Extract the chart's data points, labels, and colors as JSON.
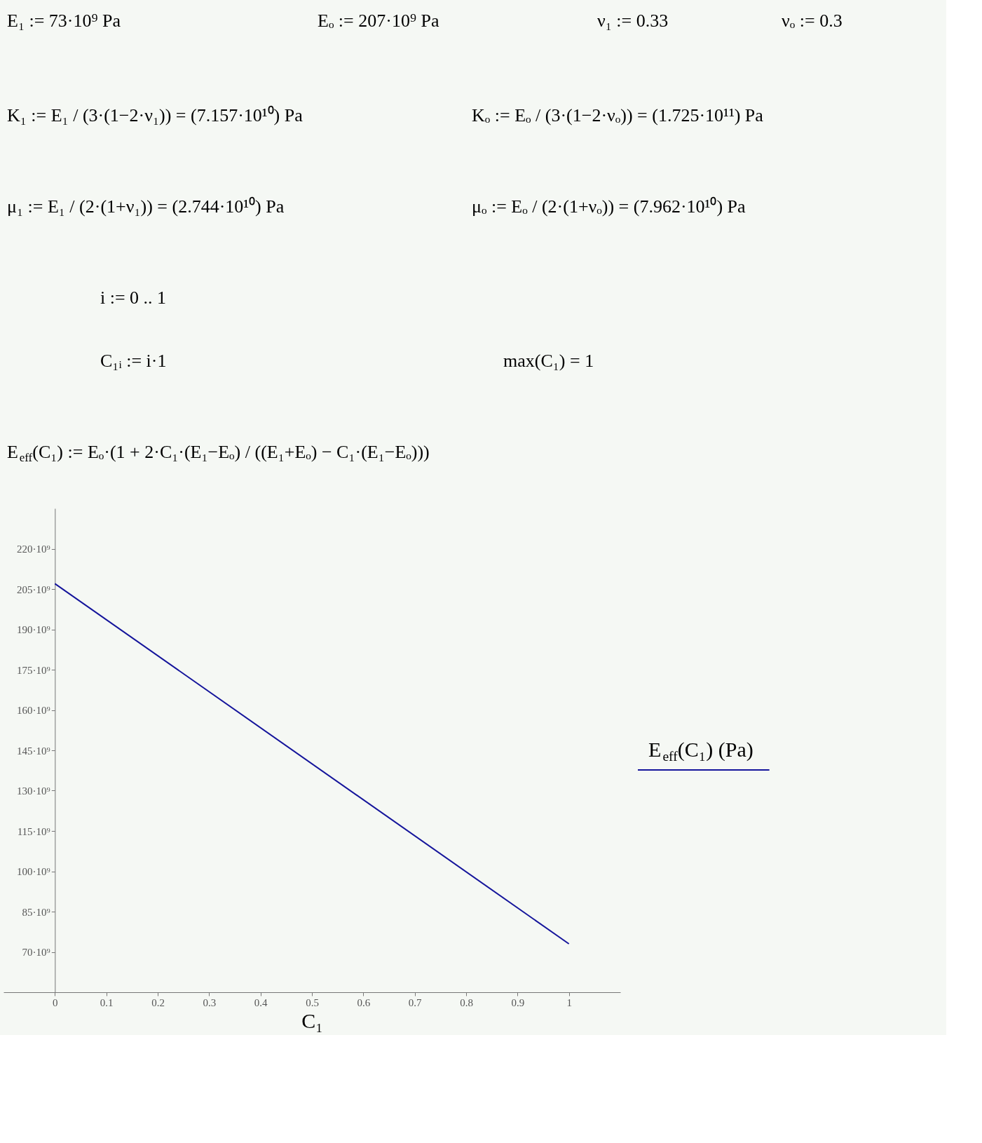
{
  "chart_data": {
    "type": "line",
    "annotations": [
      "E₁ := 73·10⁹ Pa",
      "Eₒ := 207·10⁹ Pa",
      "ν₁ := 0.33",
      "νₒ := 0.3",
      "K₁ := E₁ / (3·(1−2·ν₁)) = (7.157·10¹⁰) Pa",
      "Kₒ := Eₒ / (3·(1−2·νₒ)) = (1.725·10¹¹) Pa",
      "μ₁ := E₁ / (2·(1+ν₁)) = (2.744·10¹⁰) Pa",
      "μₒ := Eₒ / (2·(1+νₒ)) = (7.962·10¹⁰) Pa",
      "i := 0 .. 1",
      "C₁ᵢ := i·1",
      "max(C₁) = 1",
      "E$_{eff}$(C₁) := Eₒ·(1 + 2·C₁·(E₁−Eₒ) / ((E₁+Eₒ) − C₁·(E₁−Eₒ)))"
    ],
    "xlabel": "C₁",
    "x": [
      0,
      1
    ],
    "series": [
      {
        "name": "E$_{eff}$(C₁) (Pa)",
        "color": "#14149b",
        "values": [
          207000000000,
          73000000000
        ]
      }
    ],
    "xlim": [
      -0.1,
      1.1
    ],
    "xticks": [
      0,
      0.1,
      0.2,
      0.3,
      0.4,
      0.5,
      0.6,
      0.7,
      0.8,
      0.9,
      1
    ],
    "ylim": [
      55000000000,
      235000000000
    ],
    "yticks": [
      {
        "value": 70000000000,
        "label": "70·10⁹"
      },
      {
        "value": 85000000000,
        "label": "85·10⁹"
      },
      {
        "value": 100000000000,
        "label": "100·10⁹"
      },
      {
        "value": 115000000000,
        "label": "115·10⁹"
      },
      {
        "value": 130000000000,
        "label": "130·10⁹"
      },
      {
        "value": 145000000000,
        "label": "145·10⁹"
      },
      {
        "value": 160000000000,
        "label": "160·10⁹"
      },
      {
        "value": 175000000000,
        "label": "175·10⁹"
      },
      {
        "value": 190000000000,
        "label": "190·10⁹"
      },
      {
        "value": 205000000000,
        "label": "205·10⁹"
      },
      {
        "value": 220000000000,
        "label": "220·10⁹"
      }
    ],
    "grid": false,
    "legend": "right",
    "marker": "none",
    "line_style": "solid"
  }
}
